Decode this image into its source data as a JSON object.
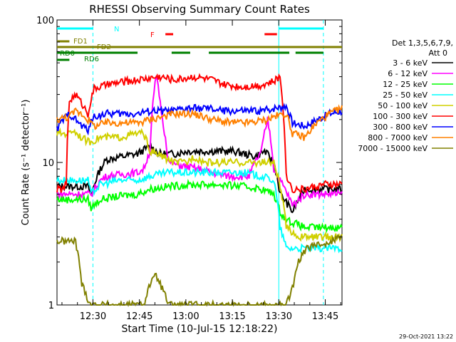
{
  "chart_data": {
    "type": "line",
    "title": "RHESSI Observing Summary Count Rates",
    "xlabel": "Start Time (10-Jul-15 12:18:22)",
    "ylabel": "Count Rate (s⁻¹ detector⁻¹)",
    "yscale": "log",
    "ylim": [
      1,
      100
    ],
    "xlim_minutes": [
      0,
      70
    ],
    "y_ticks": [
      "1",
      "10",
      "100"
    ],
    "x_ticks": [
      {
        "label": "12:30",
        "t": 11.6
      },
      {
        "label": "12:45",
        "t": 26.6
      },
      {
        "label": "13:00",
        "t": 41.6
      },
      {
        "label": "13:15",
        "t": 56.6
      },
      {
        "label": "13:30",
        "t": 71.6
      },
      {
        "label": "13:45",
        "t": 86.6
      }
    ],
    "legend": {
      "header": [
        "Det 1,3,5,6,7,9,",
        "Att 0"
      ],
      "placement": "right"
    },
    "series": [
      {
        "name": "3 - 6 keV",
        "color": "#000000",
        "t": [
          0,
          10,
          11,
          14,
          16,
          26,
          30,
          33,
          38,
          42,
          50,
          57,
          64,
          67,
          70,
          72,
          76,
          78,
          80,
          86,
          92
        ],
        "values": [
          6.8,
          6.8,
          6.0,
          9.0,
          10.5,
          11.5,
          13.0,
          11.5,
          11.5,
          12.0,
          12.0,
          12.0,
          11.0,
          12.0,
          10.0,
          6.0,
          4.5,
          5.5,
          6.5,
          6.5,
          6.5
        ]
      },
      {
        "name": "6 - 12 keV",
        "color": "#ff00ff",
        "t": [
          0,
          10,
          11,
          14,
          16,
          26,
          28,
          30,
          32,
          34,
          36,
          40,
          46,
          50,
          56,
          62,
          66,
          68,
          70,
          72,
          76,
          78,
          80,
          86,
          92
        ],
        "values": [
          6.0,
          6.0,
          6.0,
          7.5,
          8.0,
          8.5,
          9.0,
          12.0,
          40.0,
          20.0,
          10.0,
          9.5,
          9.0,
          8.5,
          8.0,
          8.0,
          12.0,
          20.0,
          9.0,
          7.5,
          5.0,
          5.5,
          6.0,
          6.0,
          6.0
        ]
      },
      {
        "name": "12 - 25 keV",
        "color": "#00ff00",
        "t": [
          0,
          10,
          11,
          14,
          20,
          26,
          30,
          36,
          44,
          52,
          60,
          66,
          70,
          72,
          74,
          76,
          80,
          86,
          92
        ],
        "values": [
          5.5,
          5.5,
          4.8,
          5.5,
          5.8,
          6.0,
          6.5,
          6.8,
          7.0,
          7.0,
          6.8,
          6.5,
          6.0,
          4.5,
          4.0,
          3.8,
          3.5,
          3.5,
          3.5
        ]
      },
      {
        "name": "25 - 50 keV",
        "color": "#00ffff",
        "t": [
          0,
          10,
          11,
          14,
          20,
          26,
          30,
          36,
          44,
          52,
          60,
          66,
          70,
          72,
          74,
          78,
          80,
          86,
          92
        ],
        "values": [
          7.5,
          7.5,
          6.0,
          7.0,
          7.5,
          7.5,
          8.0,
          8.5,
          8.5,
          8.5,
          8.5,
          8.0,
          7.5,
          3.5,
          2.5,
          2.5,
          2.5,
          2.5,
          2.5
        ]
      },
      {
        "name": "50 - 100 keV",
        "color": "#d0d000",
        "t": [
          0,
          4,
          5,
          8,
          10,
          11,
          14,
          20,
          26,
          28,
          30,
          34,
          38,
          42,
          44,
          48,
          54,
          60,
          66,
          70,
          74,
          78,
          80,
          86,
          92
        ],
        "values": [
          16,
          16,
          17,
          15,
          14,
          14,
          15,
          15,
          16,
          16,
          12,
          11,
          10,
          10,
          11,
          10,
          10,
          10,
          10,
          10,
          3.5,
          3.0,
          3.0,
          3.0,
          3.0
        ]
      },
      {
        "name": "100 - 300 keV",
        "color": "#ff0000",
        "t": [
          0,
          2,
          3,
          4,
          6,
          8,
          10,
          12,
          16,
          22,
          26,
          33,
          38,
          44,
          50,
          54,
          60,
          66,
          70,
          72,
          74,
          76,
          80,
          86,
          92
        ],
        "values": [
          6.5,
          6.5,
          7.0,
          27,
          30,
          26,
          22,
          33,
          35,
          37,
          38,
          40,
          38,
          40,
          38,
          35,
          34,
          35,
          37,
          40,
          8,
          6.5,
          6.5,
          7.0,
          7.0
        ]
      },
      {
        "name": "300 - 800 keV",
        "color": "#0000ff",
        "t": [
          0,
          2,
          4,
          6,
          8,
          10,
          12,
          16,
          22,
          26,
          30,
          34,
          38,
          42,
          48,
          54,
          60,
          66,
          70,
          74,
          76,
          80,
          84,
          88,
          92
        ],
        "values": [
          17,
          20,
          22,
          20,
          18,
          17,
          21,
          22,
          22,
          22,
          23,
          23,
          23,
          24,
          24,
          23,
          23,
          23,
          24,
          25,
          19,
          18,
          20,
          22,
          23
        ]
      },
      {
        "name": "800 - 7000 keV",
        "color": "#ff8000",
        "t": [
          0,
          4,
          6,
          8,
          10,
          12,
          16,
          22,
          26,
          30,
          34,
          38,
          44,
          50,
          56,
          62,
          68,
          70,
          74,
          76,
          80,
          84,
          88,
          92
        ],
        "values": [
          20,
          21,
          23,
          22,
          20,
          18,
          19,
          19,
          19,
          20,
          21,
          22,
          22,
          20,
          19,
          19,
          20,
          21,
          22,
          16,
          15,
          19,
          22,
          24
        ]
      },
      {
        "name": "7000 - 15000 keV",
        "color": "#808000",
        "t": [
          0,
          6,
          8,
          10,
          11,
          12,
          26,
          28,
          30,
          32,
          34,
          36,
          74,
          76,
          78,
          80,
          82,
          84,
          88,
          92
        ],
        "values": [
          2.8,
          2.8,
          1.4,
          1.1,
          1.0,
          1.0,
          1.0,
          1.0,
          1.4,
          1.6,
          1.3,
          1.0,
          1.0,
          1.3,
          2.0,
          2.4,
          2.6,
          2.6,
          2.8,
          3.0
        ]
      }
    ],
    "annotations": [
      {
        "label": "N",
        "color": "#00ffff",
        "spans": [
          [
            0,
            11.6
          ],
          [
            71.6,
            86
          ]
        ],
        "lines": [
          11.6,
          71.6,
          86
        ]
      },
      {
        "label": "F",
        "color": "#ff0000",
        "spans": [
          [
            35,
            37.5
          ],
          [
            67,
            71
          ]
        ]
      },
      {
        "label": "FD1",
        "color": "#808000",
        "spans": [
          [
            0,
            4
          ]
        ]
      },
      {
        "label": "FD2",
        "color": "#808000",
        "spans": [
          [
            0,
            92
          ]
        ]
      },
      {
        "label": "RD0",
        "color": "#008000",
        "spans": [
          [
            0,
            26
          ],
          [
            37,
            43
          ],
          [
            49,
            75
          ],
          [
            77,
            86
          ]
        ]
      },
      {
        "label": "RD6",
        "color": "#008000",
        "spans": [
          [
            0,
            4
          ]
        ]
      }
    ],
    "timestamp": "29-Oct-2021 13:22"
  }
}
